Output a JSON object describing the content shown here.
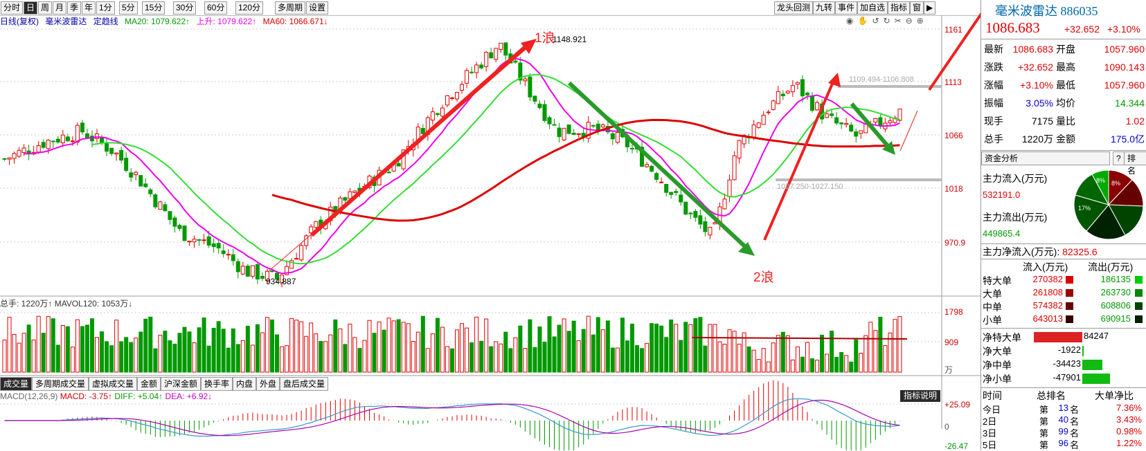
{
  "toolbar": {
    "tabs": [
      "分时",
      "日",
      "周",
      "月",
      "季",
      "年",
      "1分",
      "5分",
      "15分",
      "30分",
      "60分",
      "120分",
      "多周期",
      "设置"
    ],
    "active_index": 1,
    "right_buttons": [
      "龙头回测",
      "九转",
      "事件",
      "加自选",
      "指标",
      "窗",
      "▶"
    ]
  },
  "ma_line": {
    "label": "日线(复权)",
    "name": "毫米波雷达",
    "indicator": "定趋线",
    "ma20": "MA20: 1079.622↑",
    "up": "上升: 1079.622↑",
    "ma60": "MA60: 1066.671↓"
  },
  "annotations": {
    "wave1": "1浪",
    "wave2": "2浪",
    "high": "1148.921",
    "low": "934.887",
    "resistance": "1109.494-1106.808",
    "support": "1027.250-1027.150"
  },
  "price_axis": [
    "1161",
    "1113",
    "1066",
    "1018",
    "970.9"
  ],
  "volume": {
    "header": "总手: 1220万↑  MAVOL120: 1053万↓",
    "axis": [
      "1798",
      "909",
      "万"
    ]
  },
  "bottom_tabs": [
    "成交量",
    "多周期成交量",
    "虚拟成交量",
    "金额",
    "沪深金额",
    "换手率",
    "内盘",
    "外盘",
    "盘后成交量"
  ],
  "macd": {
    "title": "MACD(12,26,9)",
    "macd": "MACD: -3.75↑",
    "diff": "DIFF: +5.04↑",
    "dea": "DEA: +6.92↓",
    "button": "指标说明",
    "axis": [
      "+25.09",
      "0",
      "-26.47"
    ]
  },
  "quote": {
    "name": "毫米波雷达",
    "code": "886035",
    "price": "1086.683",
    "change": "+32.652",
    "change_pct": "+3.10%",
    "rows": [
      {
        "l1": "最新",
        "v1": "1086.683",
        "l2": "开盘",
        "v2": "1057.960"
      },
      {
        "l1": "涨跌",
        "v1": "+32.652",
        "l2": "最高",
        "v2": "1090.143"
      },
      {
        "l1": "涨幅",
        "v1": "+3.10%",
        "l2": "最低",
        "v2": "1057.960"
      },
      {
        "l1": "振幅",
        "v1": "3.05%",
        "l2": "均价",
        "v2": "14.344"
      },
      {
        "l1": "现手",
        "v1": "7175",
        "l2": "量比",
        "v2": "1.02"
      },
      {
        "l1": "总手",
        "v1": "1220万",
        "l2": "金额",
        "v2": "175.0亿"
      }
    ]
  },
  "fund": {
    "tab": "资金分析",
    "q": "?",
    "rank": "排名",
    "inflow_label": "主力流入(万元)",
    "inflow": "532191.0",
    "outflow_label": "主力流出(万元)",
    "outflow": "449865.4",
    "net_label": "主力净流入(万元):",
    "net": "82325.6",
    "pie_labels": [
      "8%",
      "8%",
      "17%"
    ],
    "col_in": "流入(万元)",
    "col_out": "流出(万元)",
    "orders": [
      {
        "label": "特大单",
        "in": "270382",
        "out": "186135"
      },
      {
        "label": "大单",
        "in": "261808",
        "out": "263730"
      },
      {
        "label": "中单",
        "in": "574382",
        "out": "608806"
      },
      {
        "label": "小单",
        "in": "643013",
        "out": "690915"
      }
    ],
    "net_orders": [
      {
        "label": "净特大单",
        "value": "84247"
      },
      {
        "label": "净大单",
        "value": "-1922"
      },
      {
        "label": "净中单",
        "value": "-34423"
      },
      {
        "label": "净小单",
        "value": "-47901"
      }
    ]
  },
  "ranking": {
    "headers": [
      "时间",
      "总排名",
      "大单净比"
    ],
    "rows": [
      {
        "t": "今日",
        "p": "第",
        "n": "13",
        "s": "名",
        "v": "7.36%"
      },
      {
        "t": "2日",
        "p": "第",
        "n": "40",
        "s": "名",
        "v": "3.43%"
      },
      {
        "t": "3日",
        "p": "第",
        "n": "99",
        "s": "名",
        "v": "0.98%"
      },
      {
        "t": "5日",
        "p": "第",
        "n": "96",
        "s": "名",
        "v": "1.22%"
      }
    ]
  },
  "colors": {
    "up": "#e00000",
    "down": "#009900",
    "ma20": "#33dd33",
    "ma60": "#dd0000",
    "maup": "#ee00ee",
    "ma120": "#aa0000"
  }
}
